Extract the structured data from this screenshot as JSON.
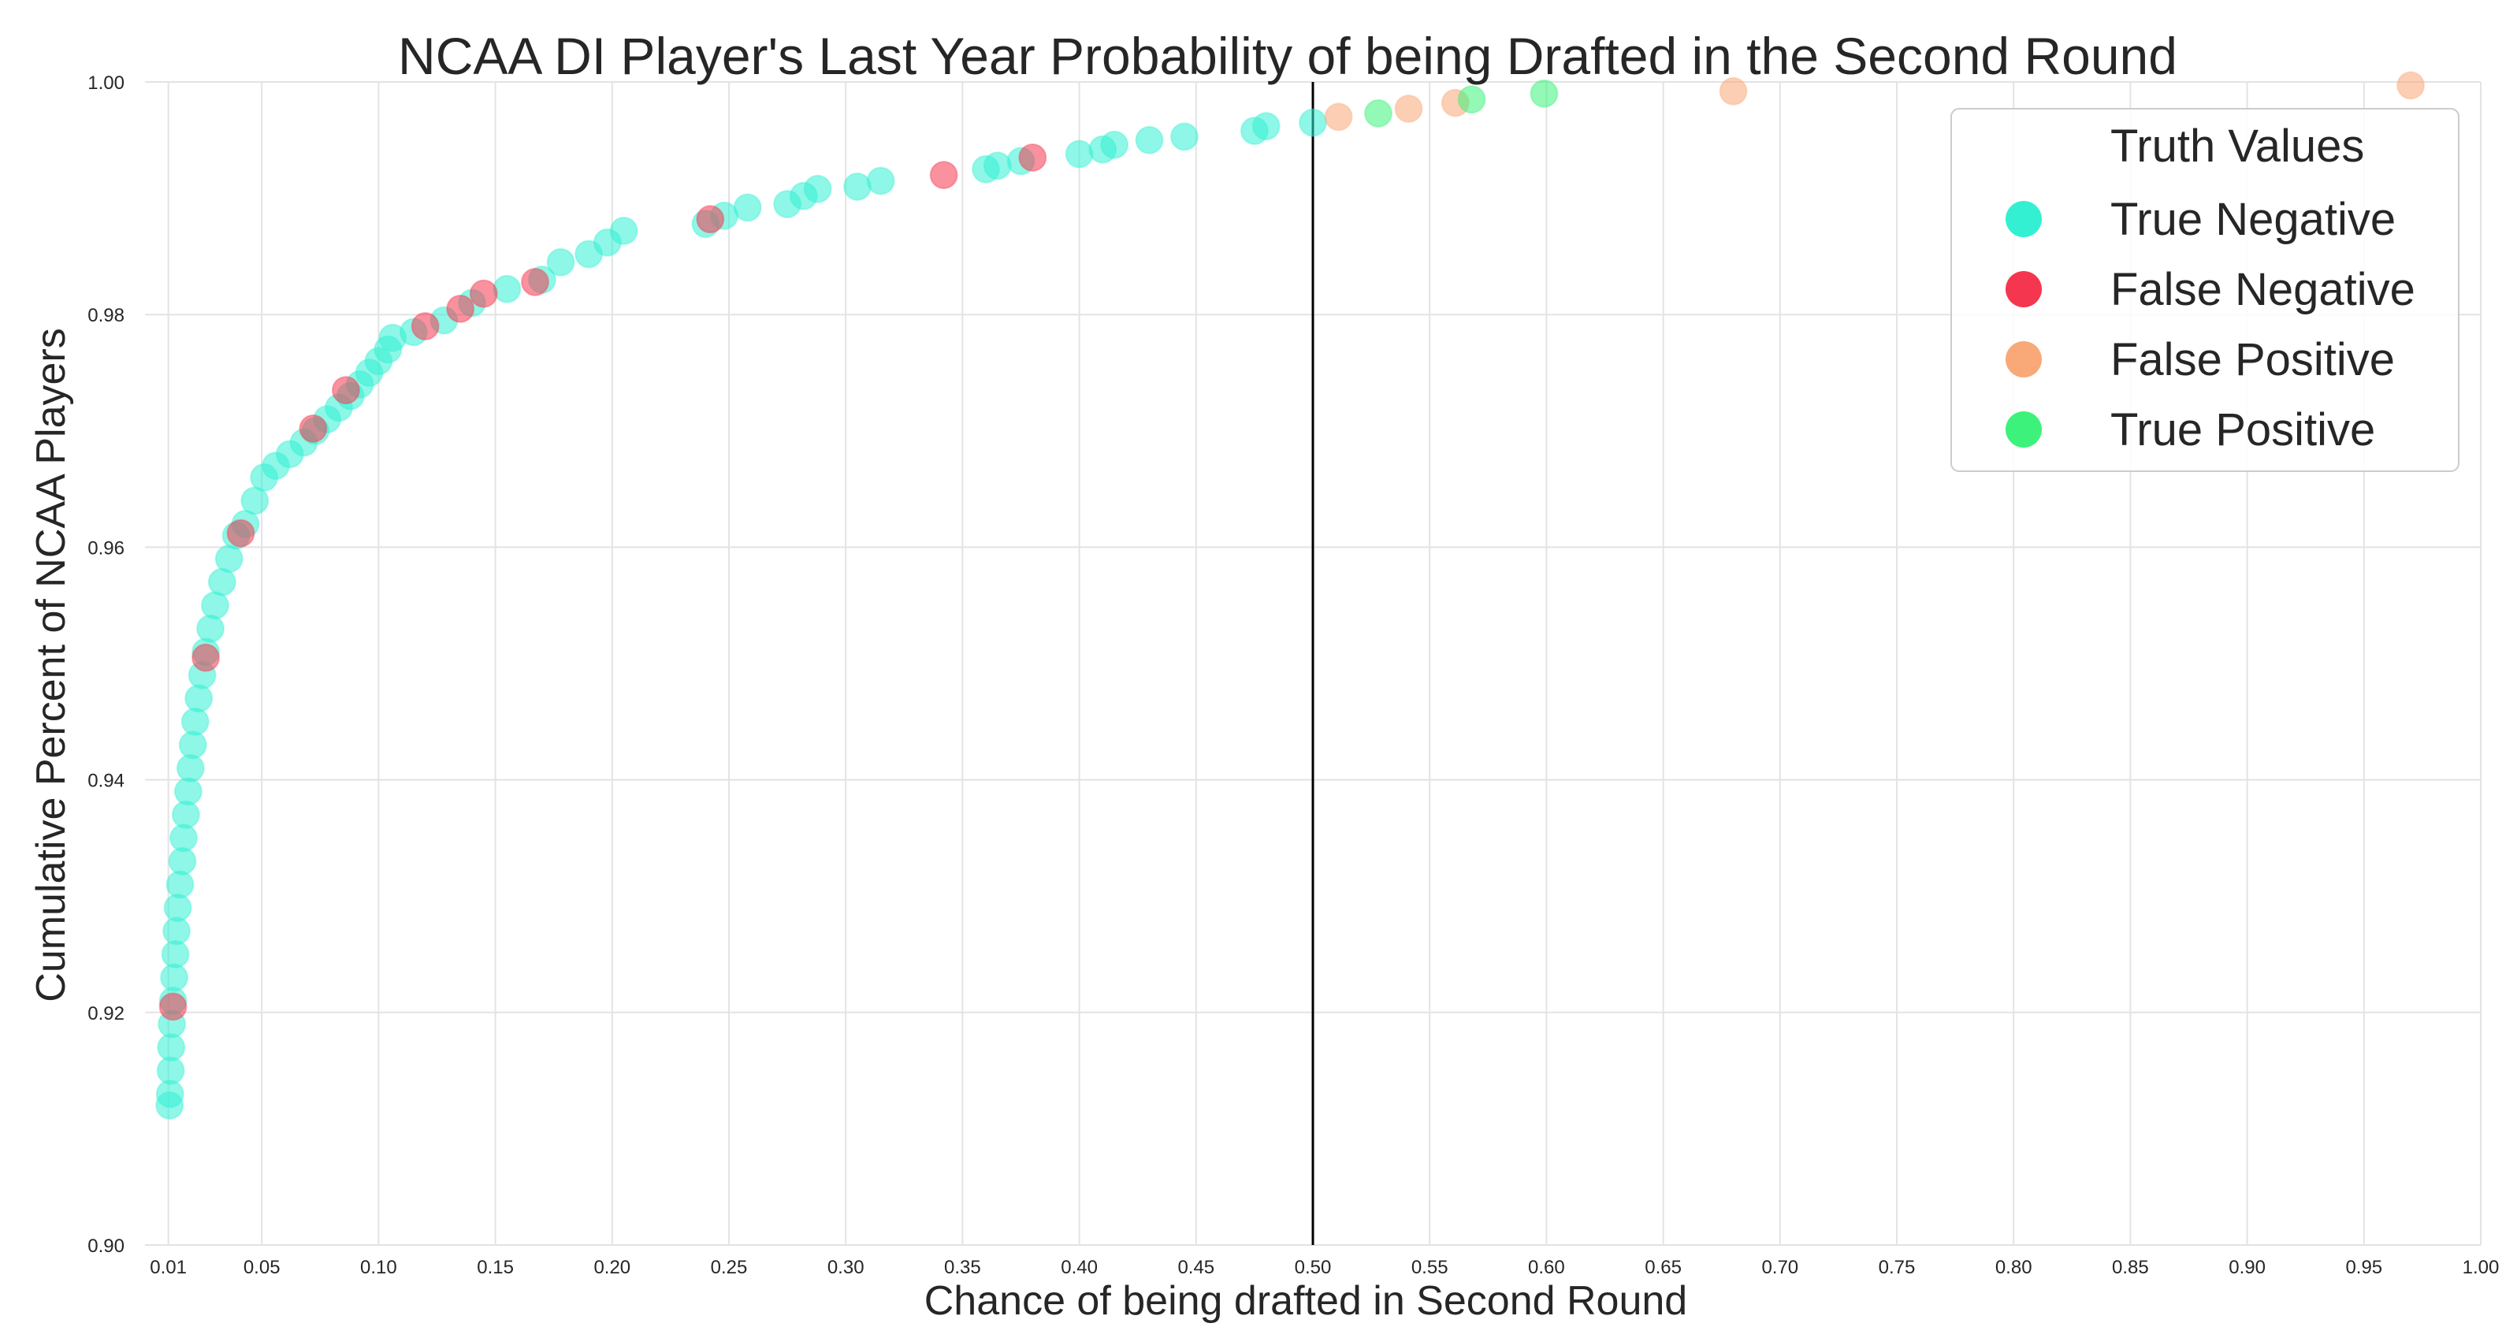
{
  "chart_data": {
    "type": "scatter",
    "title": "NCAA DI Player's Last Year Probability of being Drafted in the Second Round",
    "xlabel": "Chance of being drafted in Second Round",
    "ylabel": "Cumulative Percent of NCAA Players",
    "xlim": [
      0.0,
      1.0
    ],
    "ylim": [
      0.9,
      1.0
    ],
    "x_ticks": [
      "0.01",
      "0.05",
      "0.10",
      "0.15",
      "0.20",
      "0.25",
      "0.30",
      "0.35",
      "0.40",
      "0.45",
      "0.50",
      "0.55",
      "0.60",
      "0.65",
      "0.70",
      "0.75",
      "0.80",
      "0.85",
      "0.90",
      "0.95",
      "1.00"
    ],
    "x_tick_values": [
      0.01,
      0.05,
      0.1,
      0.15,
      0.2,
      0.25,
      0.3,
      0.35,
      0.4,
      0.45,
      0.5,
      0.55,
      0.6,
      0.65,
      0.7,
      0.75,
      0.8,
      0.85,
      0.9,
      0.95,
      1.0
    ],
    "y_ticks": [
      "0.90",
      "0.92",
      "0.94",
      "0.96",
      "0.98",
      "1.00"
    ],
    "y_tick_values": [
      0.9,
      0.92,
      0.94,
      0.96,
      0.98,
      1.0
    ],
    "grid": true,
    "threshold_line": 0.5,
    "legend": {
      "title": "Truth Values",
      "placement": "top-right",
      "entries": [
        {
          "label": "True Negative",
          "color": "#33f0d3"
        },
        {
          "label": "False Negative",
          "color": "#f5364f"
        },
        {
          "label": "False Positive",
          "color": "#f9a877"
        },
        {
          "label": "True Positive",
          "color": "#3df27a"
        }
      ]
    },
    "series": [
      {
        "name": "True Negative",
        "color": "#33f0d3",
        "points": [
          [
            0.0105,
            0.912
          ],
          [
            0.0107,
            0.913
          ],
          [
            0.011,
            0.915
          ],
          [
            0.0112,
            0.917
          ],
          [
            0.0115,
            0.919
          ],
          [
            0.012,
            0.921
          ],
          [
            0.0125,
            0.923
          ],
          [
            0.013,
            0.925
          ],
          [
            0.0135,
            0.927
          ],
          [
            0.014,
            0.929
          ],
          [
            0.015,
            0.931
          ],
          [
            0.016,
            0.933
          ],
          [
            0.0165,
            0.935
          ],
          [
            0.0175,
            0.937
          ],
          [
            0.0185,
            0.939
          ],
          [
            0.0195,
            0.941
          ],
          [
            0.0205,
            0.943
          ],
          [
            0.0215,
            0.945
          ],
          [
            0.023,
            0.947
          ],
          [
            0.0245,
            0.949
          ],
          [
            0.026,
            0.951
          ],
          [
            0.028,
            0.953
          ],
          [
            0.03,
            0.955
          ],
          [
            0.033,
            0.957
          ],
          [
            0.036,
            0.959
          ],
          [
            0.039,
            0.961
          ],
          [
            0.043,
            0.962
          ],
          [
            0.047,
            0.964
          ],
          [
            0.051,
            0.966
          ],
          [
            0.056,
            0.967
          ],
          [
            0.062,
            0.968
          ],
          [
            0.068,
            0.969
          ],
          [
            0.073,
            0.97
          ],
          [
            0.078,
            0.971
          ],
          [
            0.083,
            0.972
          ],
          [
            0.088,
            0.973
          ],
          [
            0.092,
            0.974
          ],
          [
            0.096,
            0.975
          ],
          [
            0.1,
            0.976
          ],
          [
            0.104,
            0.977
          ],
          [
            0.106,
            0.978
          ],
          [
            0.115,
            0.9785
          ],
          [
            0.128,
            0.9795
          ],
          [
            0.14,
            0.981
          ],
          [
            0.155,
            0.9822
          ],
          [
            0.17,
            0.983
          ],
          [
            0.178,
            0.9845
          ],
          [
            0.19,
            0.9852
          ],
          [
            0.198,
            0.9862
          ],
          [
            0.205,
            0.9872
          ],
          [
            0.24,
            0.9878
          ],
          [
            0.248,
            0.9885
          ],
          [
            0.258,
            0.9892
          ],
          [
            0.275,
            0.9895
          ],
          [
            0.282,
            0.9902
          ],
          [
            0.288,
            0.9908
          ],
          [
            0.305,
            0.991
          ],
          [
            0.315,
            0.9915
          ],
          [
            0.36,
            0.9925
          ],
          [
            0.365,
            0.9928
          ],
          [
            0.375,
            0.9932
          ],
          [
            0.4,
            0.9938
          ],
          [
            0.41,
            0.9942
          ],
          [
            0.415,
            0.9946
          ],
          [
            0.43,
            0.995
          ],
          [
            0.445,
            0.9953
          ],
          [
            0.475,
            0.9958
          ],
          [
            0.48,
            0.9962
          ],
          [
            0.5,
            0.9965
          ]
        ]
      },
      {
        "name": "False Negative",
        "color": "#f5364f",
        "points": [
          [
            0.012,
            0.9205
          ],
          [
            0.026,
            0.9505
          ],
          [
            0.041,
            0.9612
          ],
          [
            0.072,
            0.9702
          ],
          [
            0.086,
            0.9735
          ],
          [
            0.12,
            0.979
          ],
          [
            0.135,
            0.9805
          ],
          [
            0.145,
            0.9818
          ],
          [
            0.167,
            0.9828
          ],
          [
            0.242,
            0.9882
          ],
          [
            0.342,
            0.992
          ],
          [
            0.38,
            0.9935
          ]
        ]
      },
      {
        "name": "False Positive",
        "color": "#f9a877",
        "points": [
          [
            0.511,
            0.997
          ],
          [
            0.541,
            0.9977
          ],
          [
            0.561,
            0.9982
          ],
          [
            0.68,
            0.9992
          ],
          [
            0.97,
            0.9997
          ]
        ]
      },
      {
        "name": "True Positive",
        "color": "#3df27a",
        "points": [
          [
            0.528,
            0.9973
          ],
          [
            0.568,
            0.9985
          ],
          [
            0.599,
            0.999
          ]
        ]
      }
    ]
  }
}
